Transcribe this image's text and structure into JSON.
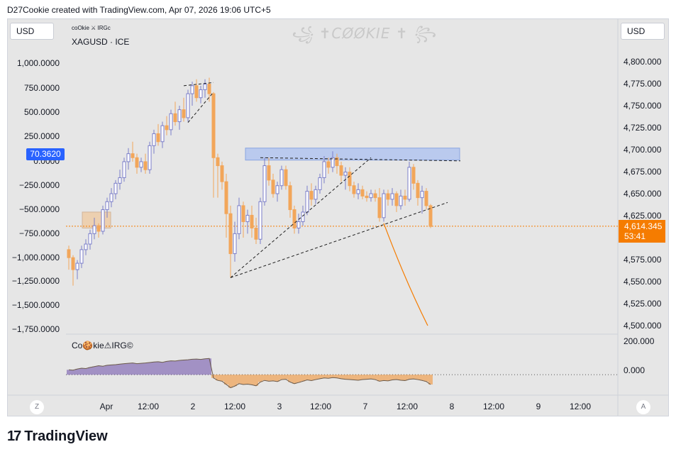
{
  "header": {
    "text": "D27Cookie created with TradingView.com, Apr 07, 2026 19:06 UTC+5"
  },
  "left_currency": "USD",
  "right_currency": "USD",
  "symbol": {
    "tag": "coOkie ⚔ IRGc",
    "name": "XAGUSD · ICE"
  },
  "watermark": "꧁ ✝CØØKIE ✝ ꧂",
  "left_axis_ticks": [
    "1,000.0000",
    "750.0000",
    "500.0000",
    "250.0000",
    "0.0000",
    "−250.0000",
    "−500.0000",
    "−750.0000",
    "−1,000.0000",
    "−1,250.0000",
    "−1,500.0000",
    "−1,750.0000"
  ],
  "left_badge": "70.3620",
  "right_axis_ticks": [
    "4,800.000",
    "4,775.000",
    "4,750.000",
    "4,725.000",
    "4,700.000",
    "4,675.000",
    "4,650.000",
    "4,625.000",
    "4,575.000",
    "4,550.000",
    "4,525.000",
    "4,500.000"
  ],
  "price_badge": {
    "price": "4,614.345",
    "countdown": "53:41"
  },
  "indicator": {
    "title": "Co🍪kie⚠IRG©",
    "ticks": [
      "200.000",
      "0.000"
    ]
  },
  "time_axis": [
    "Apr",
    "12:00",
    "2",
    "12:00",
    "3",
    "12:00",
    "7",
    "12:00",
    "8",
    "12:00",
    "9",
    "12:00"
  ],
  "corner_buttons": {
    "left": "Z",
    "right": "A"
  },
  "brand": {
    "logo": "17",
    "name": "TradingView"
  },
  "colors": {
    "up": "#7b7ec9",
    "down": "#f2a65a",
    "accent_blue": "#2962ff",
    "accent_orange": "#f57c00",
    "zone": "#b6c7ef"
  },
  "chart_data": {
    "type": "candlestick",
    "symbol": "XAGUSD",
    "ylim": [
      4490,
      4820
    ],
    "left_ylim": [
      -1800,
      1100
    ],
    "current_price": 4614.345,
    "candles": [
      {
        "o": 4585,
        "h": 4590,
        "l": 4560,
        "c": 4575
      },
      {
        "o": 4575,
        "h": 4578,
        "l": 4540,
        "c": 4560
      },
      {
        "o": 4560,
        "h": 4572,
        "l": 4548,
        "c": 4568
      },
      {
        "o": 4568,
        "h": 4590,
        "l": 4562,
        "c": 4585
      },
      {
        "o": 4585,
        "h": 4598,
        "l": 4578,
        "c": 4592
      },
      {
        "o": 4592,
        "h": 4610,
        "l": 4585,
        "c": 4605
      },
      {
        "o": 4605,
        "h": 4625,
        "l": 4598,
        "c": 4615
      },
      {
        "o": 4615,
        "h": 4618,
        "l": 4600,
        "c": 4608
      },
      {
        "o": 4608,
        "h": 4640,
        "l": 4604,
        "c": 4635
      },
      {
        "o": 4635,
        "h": 4650,
        "l": 4625,
        "c": 4645
      },
      {
        "o": 4645,
        "h": 4662,
        "l": 4638,
        "c": 4655
      },
      {
        "o": 4655,
        "h": 4672,
        "l": 4648,
        "c": 4668
      },
      {
        "o": 4668,
        "h": 4685,
        "l": 4660,
        "c": 4675
      },
      {
        "o": 4675,
        "h": 4700,
        "l": 4670,
        "c": 4695
      },
      {
        "o": 4695,
        "h": 4712,
        "l": 4685,
        "c": 4705
      },
      {
        "o": 4705,
        "h": 4720,
        "l": 4695,
        "c": 4700
      },
      {
        "o": 4700,
        "h": 4705,
        "l": 4680,
        "c": 4688
      },
      {
        "o": 4688,
        "h": 4700,
        "l": 4682,
        "c": 4695
      },
      {
        "o": 4695,
        "h": 4705,
        "l": 4680,
        "c": 4685
      },
      {
        "o": 4685,
        "h": 4720,
        "l": 4680,
        "c": 4715
      },
      {
        "o": 4715,
        "h": 4735,
        "l": 4705,
        "c": 4730
      },
      {
        "o": 4730,
        "h": 4742,
        "l": 4715,
        "c": 4720
      },
      {
        "o": 4720,
        "h": 4745,
        "l": 4712,
        "c": 4740
      },
      {
        "o": 4740,
        "h": 4752,
        "l": 4728,
        "c": 4735
      },
      {
        "o": 4735,
        "h": 4760,
        "l": 4728,
        "c": 4755
      },
      {
        "o": 4755,
        "h": 4770,
        "l": 4740,
        "c": 4745
      },
      {
        "o": 4745,
        "h": 4765,
        "l": 4735,
        "c": 4760
      },
      {
        "o": 4760,
        "h": 4775,
        "l": 4745,
        "c": 4750
      },
      {
        "o": 4750,
        "h": 4785,
        "l": 4745,
        "c": 4780
      },
      {
        "o": 4780,
        "h": 4795,
        "l": 4765,
        "c": 4790
      },
      {
        "o": 4790,
        "h": 4798,
        "l": 4770,
        "c": 4775
      },
      {
        "o": 4775,
        "h": 4790,
        "l": 4768,
        "c": 4785
      },
      {
        "o": 4785,
        "h": 4798,
        "l": 4775,
        "c": 4792
      },
      {
        "o": 4792,
        "h": 4800,
        "l": 4770,
        "c": 4780
      },
      {
        "o": 4780,
        "h": 4782,
        "l": 4650,
        "c": 4700
      },
      {
        "o": 4700,
        "h": 4705,
        "l": 4650,
        "c": 4690
      },
      {
        "o": 4690,
        "h": 4695,
        "l": 4660,
        "c": 4670
      },
      {
        "o": 4670,
        "h": 4680,
        "l": 4600,
        "c": 4630
      },
      {
        "o": 4630,
        "h": 4640,
        "l": 4550,
        "c": 4580
      },
      {
        "o": 4580,
        "h": 4620,
        "l": 4570,
        "c": 4605
      },
      {
        "o": 4605,
        "h": 4650,
        "l": 4598,
        "c": 4640
      },
      {
        "o": 4640,
        "h": 4645,
        "l": 4600,
        "c": 4620
      },
      {
        "o": 4620,
        "h": 4635,
        "l": 4605,
        "c": 4628
      },
      {
        "o": 4628,
        "h": 4640,
        "l": 4600,
        "c": 4612
      },
      {
        "o": 4612,
        "h": 4625,
        "l": 4592,
        "c": 4598
      },
      {
        "o": 4598,
        "h": 4650,
        "l": 4592,
        "c": 4645
      },
      {
        "o": 4645,
        "h": 4700,
        "l": 4640,
        "c": 4690
      },
      {
        "o": 4690,
        "h": 4700,
        "l": 4665,
        "c": 4672
      },
      {
        "o": 4672,
        "h": 4680,
        "l": 4650,
        "c": 4655
      },
      {
        "o": 4655,
        "h": 4670,
        "l": 4645,
        "c": 4665
      },
      {
        "o": 4665,
        "h": 4690,
        "l": 4660,
        "c": 4685
      },
      {
        "o": 4685,
        "h": 4690,
        "l": 4660,
        "c": 4665
      },
      {
        "o": 4665,
        "h": 4670,
        "l": 4625,
        "c": 4635
      },
      {
        "o": 4635,
        "h": 4640,
        "l": 4605,
        "c": 4612
      },
      {
        "o": 4612,
        "h": 4630,
        "l": 4605,
        "c": 4620
      },
      {
        "o": 4620,
        "h": 4640,
        "l": 4615,
        "c": 4632
      },
      {
        "o": 4632,
        "h": 4665,
        "l": 4628,
        "c": 4658
      },
      {
        "o": 4658,
        "h": 4668,
        "l": 4640,
        "c": 4648
      },
      {
        "o": 4648,
        "h": 4665,
        "l": 4642,
        "c": 4660
      },
      {
        "o": 4660,
        "h": 4680,
        "l": 4655,
        "c": 4675
      },
      {
        "o": 4675,
        "h": 4702,
        "l": 4668,
        "c": 4695
      },
      {
        "o": 4695,
        "h": 4700,
        "l": 4680,
        "c": 4688
      },
      {
        "o": 4688,
        "h": 4708,
        "l": 4682,
        "c": 4700
      },
      {
        "o": 4700,
        "h": 4705,
        "l": 4680,
        "c": 4690
      },
      {
        "o": 4690,
        "h": 4695,
        "l": 4670,
        "c": 4678
      },
      {
        "o": 4678,
        "h": 4688,
        "l": 4660,
        "c": 4682
      },
      {
        "o": 4682,
        "h": 4688,
        "l": 4658,
        "c": 4665
      },
      {
        "o": 4665,
        "h": 4670,
        "l": 4650,
        "c": 4655
      },
      {
        "o": 4655,
        "h": 4668,
        "l": 4648,
        "c": 4660
      },
      {
        "o": 4660,
        "h": 4665,
        "l": 4648,
        "c": 4652
      },
      {
        "o": 4652,
        "h": 4658,
        "l": 4645,
        "c": 4650
      },
      {
        "o": 4650,
        "h": 4660,
        "l": 4645,
        "c": 4655
      },
      {
        "o": 4655,
        "h": 4660,
        "l": 4645,
        "c": 4650
      },
      {
        "o": 4650,
        "h": 4662,
        "l": 4620,
        "c": 4625
      },
      {
        "o": 4625,
        "h": 4660,
        "l": 4620,
        "c": 4655
      },
      {
        "o": 4655,
        "h": 4660,
        "l": 4640,
        "c": 4648
      },
      {
        "o": 4648,
        "h": 4662,
        "l": 4640,
        "c": 4655
      },
      {
        "o": 4655,
        "h": 4658,
        "l": 4632,
        "c": 4640
      },
      {
        "o": 4640,
        "h": 4660,
        "l": 4635,
        "c": 4652
      },
      {
        "o": 4652,
        "h": 4660,
        "l": 4640,
        "c": 4648
      },
      {
        "o": 4648,
        "h": 4695,
        "l": 4645,
        "c": 4688
      },
      {
        "o": 4688,
        "h": 4692,
        "l": 4660,
        "c": 4668
      },
      {
        "o": 4668,
        "h": 4672,
        "l": 4640,
        "c": 4650
      },
      {
        "o": 4650,
        "h": 4665,
        "l": 4630,
        "c": 4658
      },
      {
        "o": 4658,
        "h": 4662,
        "l": 4635,
        "c": 4640
      },
      {
        "o": 4640,
        "h": 4642,
        "l": 4612,
        "c": 4614
      }
    ],
    "indicator": {
      "ylim": [
        -130,
        210
      ],
      "values": [
        30,
        28,
        35,
        40,
        38,
        45,
        50,
        55,
        52,
        58,
        60,
        62,
        65,
        68,
        70,
        72,
        68,
        70,
        72,
        75,
        78,
        80,
        76,
        82,
        85,
        84,
        88,
        90,
        92,
        95,
        96,
        94,
        98,
        100,
        -20,
        -35,
        -40,
        -60,
        -80,
        -70,
        -55,
        -60,
        -58,
        -62,
        -68,
        -45,
        -35,
        -40,
        -38,
        -42,
        -30,
        -28,
        -45,
        -55,
        -48,
        -40,
        -32,
        -36,
        -30,
        -25,
        -20,
        -22,
        -18,
        -20,
        -25,
        -28,
        -30,
        -32,
        -34,
        -30,
        -28,
        -26,
        -30,
        -40,
        -36,
        -38,
        -32,
        -30,
        -34,
        -36,
        -28,
        -26,
        -30,
        -35,
        -42,
        -60
      ]
    }
  }
}
